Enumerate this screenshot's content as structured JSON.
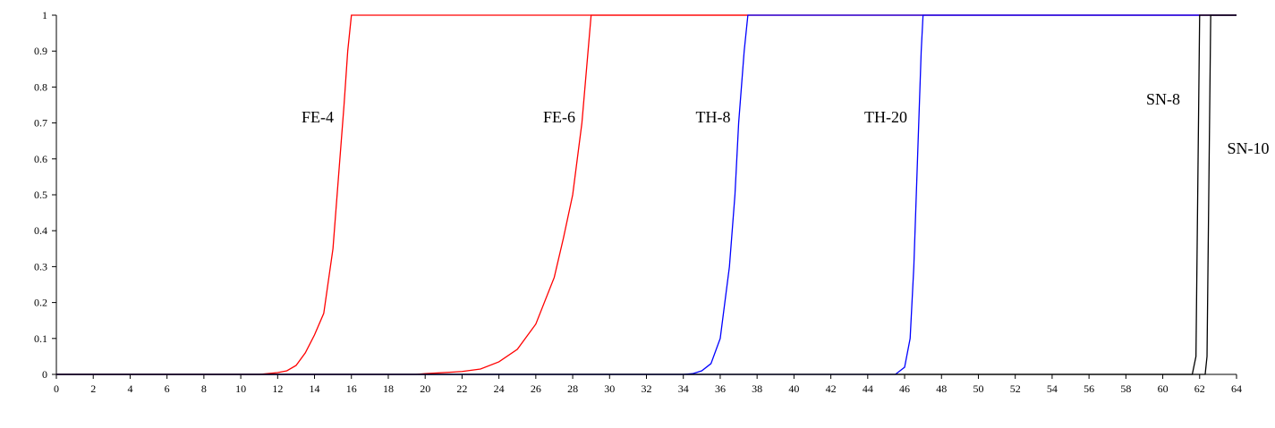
{
  "chart_data": {
    "type": "line",
    "xlim": [
      0,
      64
    ],
    "xticks": [
      0,
      2,
      4,
      6,
      8,
      10,
      12,
      14,
      16,
      18,
      20,
      22,
      24,
      26,
      28,
      30,
      32,
      34,
      36,
      38,
      40,
      42,
      44,
      46,
      48,
      50,
      52,
      54,
      56,
      58,
      60,
      62,
      64
    ],
    "ylim": [
      0,
      1
    ],
    "yticks": [
      0,
      0.1,
      0.2,
      0.3,
      0.4,
      0.5,
      0.6,
      0.7,
      0.8,
      0.9,
      1
    ],
    "grid": false,
    "series": [
      {
        "name": "FE-4",
        "color": "#ff0000",
        "x": [
          0,
          11,
          12,
          12.5,
          13,
          13.5,
          14,
          14.5,
          15,
          15.3,
          15.6,
          15.8,
          16,
          64
        ],
        "values": [
          0,
          0,
          0.005,
          0.01,
          0.025,
          0.06,
          0.11,
          0.17,
          0.35,
          0.55,
          0.75,
          0.9,
          1,
          1
        ]
      },
      {
        "name": "FE-6",
        "color": "#ff0000",
        "x": [
          0,
          19.5,
          20,
          22,
          23,
          24,
          25,
          26,
          27,
          27.5,
          28,
          28.5,
          29,
          64
        ],
        "values": [
          0,
          0,
          0.002,
          0.008,
          0.015,
          0.035,
          0.07,
          0.14,
          0.27,
          0.38,
          0.5,
          0.7,
          1,
          1
        ]
      },
      {
        "name": "TH-8",
        "color": "#0000ff",
        "x": [
          0,
          34,
          34.5,
          35,
          35.5,
          36,
          36.5,
          36.8,
          37,
          37.3,
          37.5,
          64
        ],
        "values": [
          0,
          0,
          0.002,
          0.01,
          0.03,
          0.1,
          0.3,
          0.5,
          0.7,
          0.9,
          1,
          1
        ]
      },
      {
        "name": "TH-20",
        "color": "#0000ff",
        "x": [
          0,
          45.5,
          46,
          46.3,
          46.5,
          46.7,
          46.9,
          47,
          64
        ],
        "values": [
          0,
          0,
          0.02,
          0.1,
          0.3,
          0.6,
          0.9,
          1,
          1
        ]
      },
      {
        "name": "SN-8",
        "color": "#000000",
        "x": [
          0,
          61.6,
          61.8,
          62,
          64
        ],
        "values": [
          0,
          0,
          0.05,
          1,
          1
        ]
      },
      {
        "name": "SN-10",
        "color": "#000000",
        "x": [
          0,
          62.3,
          62.4,
          62.6,
          64
        ],
        "values": [
          0,
          0,
          0.05,
          1,
          1
        ]
      }
    ]
  }
}
